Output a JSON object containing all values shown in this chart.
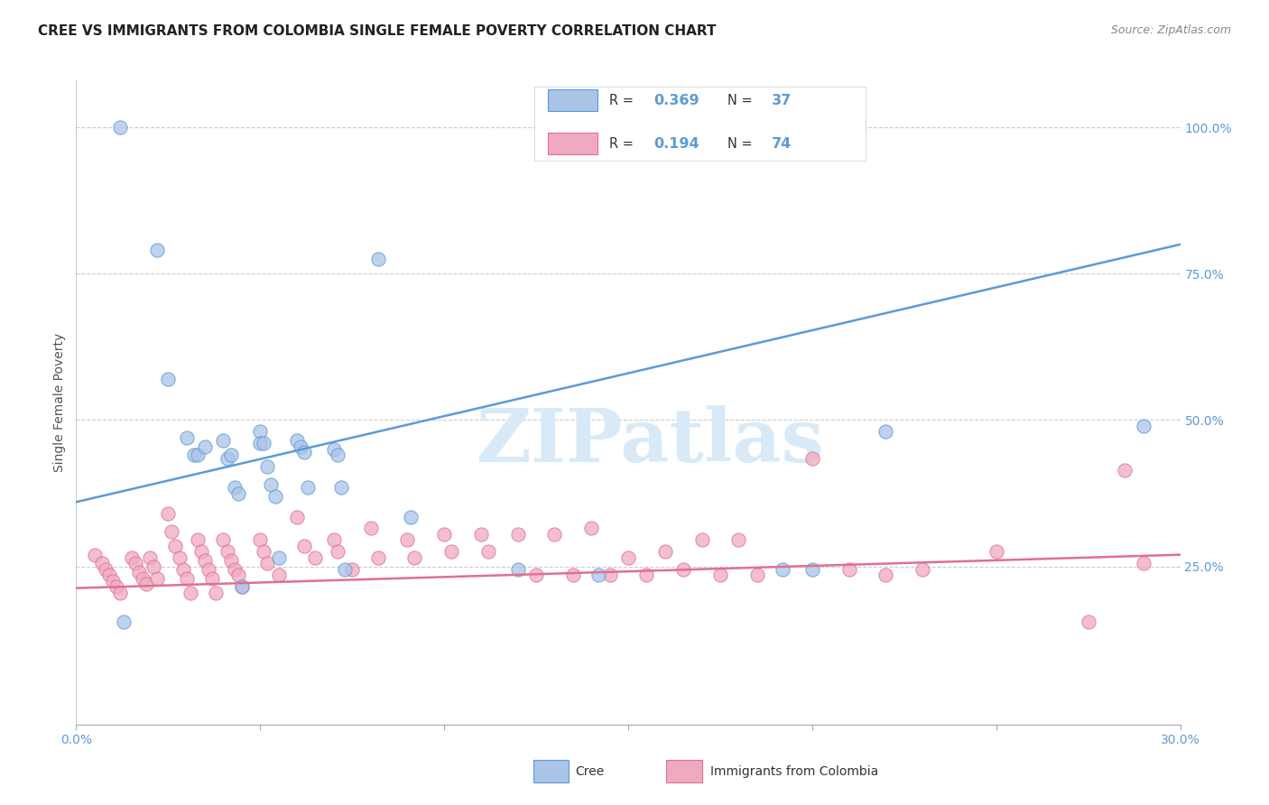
{
  "title": "CREE VS IMMIGRANTS FROM COLOMBIA SINGLE FEMALE POVERTY CORRELATION CHART",
  "source": "Source: ZipAtlas.com",
  "ylabel": "Single Female Poverty",
  "xlim": [
    0.0,
    0.3
  ],
  "ylim": [
    -0.02,
    1.08
  ],
  "xticks": [
    0.0,
    0.05,
    0.1,
    0.15,
    0.2,
    0.25,
    0.3
  ],
  "xtick_labels": [
    "0.0%",
    "",
    "",
    "",
    "",
    "",
    "30.0%"
  ],
  "yticks": [
    0.25,
    0.5,
    0.75,
    1.0
  ],
  "ytick_labels": [
    "25.0%",
    "50.0%",
    "75.0%",
    "100.0%"
  ],
  "legend_labels": [
    "Cree",
    "Immigrants from Colombia"
  ],
  "cree_R": 0.369,
  "cree_N": 37,
  "colombia_R": 0.194,
  "colombia_N": 74,
  "cree_color": "#aac4e8",
  "colombia_color": "#f0aac0",
  "cree_line_color": "#5b9bd5",
  "colombia_line_color": "#e07090",
  "cree_edge_color": "#5b9bd5",
  "colombia_edge_color": "#e07090",
  "watermark_color": "#d8eaf8",
  "watermark": "ZIPatlas",
  "background_color": "#ffffff",
  "grid_color": "#cccccc",
  "title_color": "#222222",
  "label_color": "#555555",
  "tick_color": "#5b9bd5",
  "cree_scatter_x": [
    0.012,
    0.022,
    0.025,
    0.03,
    0.032,
    0.033,
    0.035,
    0.04,
    0.041,
    0.042,
    0.043,
    0.044,
    0.045,
    0.05,
    0.05,
    0.051,
    0.052,
    0.053,
    0.054,
    0.055,
    0.06,
    0.061,
    0.062,
    0.063,
    0.07,
    0.071,
    0.072,
    0.073,
    0.082,
    0.091,
    0.12,
    0.142,
    0.192,
    0.2,
    0.22,
    0.29,
    0.013
  ],
  "cree_scatter_y": [
    1.0,
    0.79,
    0.57,
    0.47,
    0.44,
    0.44,
    0.455,
    0.465,
    0.435,
    0.44,
    0.385,
    0.375,
    0.215,
    0.48,
    0.46,
    0.46,
    0.42,
    0.39,
    0.37,
    0.265,
    0.465,
    0.455,
    0.445,
    0.385,
    0.45,
    0.44,
    0.385,
    0.245,
    0.775,
    0.335,
    0.245,
    0.235,
    0.245,
    0.245,
    0.48,
    0.49,
    0.155
  ],
  "colombia_scatter_x": [
    0.005,
    0.007,
    0.008,
    0.009,
    0.01,
    0.011,
    0.012,
    0.015,
    0.016,
    0.017,
    0.018,
    0.019,
    0.02,
    0.021,
    0.022,
    0.025,
    0.026,
    0.027,
    0.028,
    0.029,
    0.03,
    0.031,
    0.033,
    0.034,
    0.035,
    0.036,
    0.037,
    0.038,
    0.04,
    0.041,
    0.042,
    0.043,
    0.044,
    0.045,
    0.05,
    0.051,
    0.052,
    0.055,
    0.06,
    0.062,
    0.065,
    0.07,
    0.071,
    0.075,
    0.08,
    0.082,
    0.09,
    0.092,
    0.1,
    0.102,
    0.11,
    0.112,
    0.12,
    0.125,
    0.13,
    0.135,
    0.14,
    0.145,
    0.15,
    0.155,
    0.16,
    0.165,
    0.17,
    0.175,
    0.18,
    0.185,
    0.2,
    0.21,
    0.22,
    0.23,
    0.25,
    0.275,
    0.285,
    0.29
  ],
  "colombia_scatter_y": [
    0.27,
    0.255,
    0.245,
    0.235,
    0.225,
    0.215,
    0.205,
    0.265,
    0.255,
    0.24,
    0.23,
    0.22,
    0.265,
    0.25,
    0.23,
    0.34,
    0.31,
    0.285,
    0.265,
    0.245,
    0.23,
    0.205,
    0.295,
    0.275,
    0.26,
    0.245,
    0.23,
    0.205,
    0.295,
    0.275,
    0.26,
    0.245,
    0.235,
    0.215,
    0.295,
    0.275,
    0.255,
    0.235,
    0.335,
    0.285,
    0.265,
    0.295,
    0.275,
    0.245,
    0.315,
    0.265,
    0.295,
    0.265,
    0.305,
    0.275,
    0.305,
    0.275,
    0.305,
    0.235,
    0.305,
    0.235,
    0.315,
    0.235,
    0.265,
    0.235,
    0.275,
    0.245,
    0.295,
    0.235,
    0.295,
    0.235,
    0.435,
    0.245,
    0.235,
    0.245,
    0.275,
    0.155,
    0.415,
    0.255
  ],
  "cree_line_x": [
    0.0,
    0.3
  ],
  "cree_line_y": [
    0.36,
    0.8
  ],
  "colombia_line_x": [
    0.0,
    0.3
  ],
  "colombia_line_y": [
    0.213,
    0.27
  ]
}
